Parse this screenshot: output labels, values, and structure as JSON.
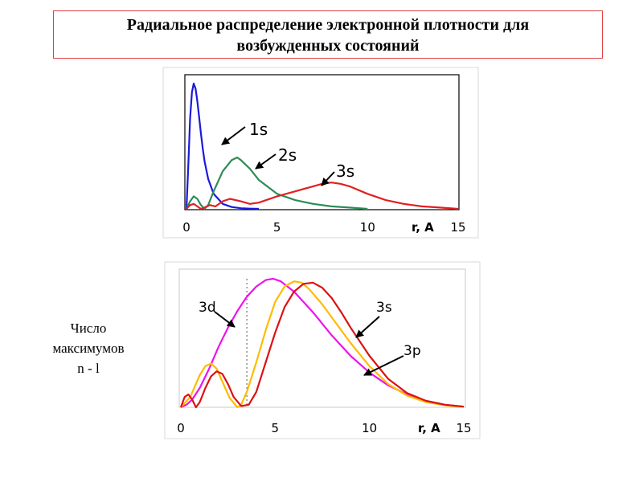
{
  "title_line1": "Радиальное распределение электронной плотности для",
  "title_line2": "возбужденных состояний",
  "side_note": [
    "Число",
    "максимумов",
    "n - l"
  ],
  "chart_data": [
    {
      "type": "line",
      "xlabel": "r, A",
      "xlim": [
        0,
        15
      ],
      "x_ticks": [
        "0",
        "5",
        "10",
        "15"
      ],
      "grid": false,
      "series": [
        {
          "name": "1s",
          "color": "#1a1adc",
          "x": [
            0,
            0.1,
            0.2,
            0.3,
            0.4,
            0.5,
            0.6,
            0.7,
            0.8,
            0.9,
            1.0,
            1.2,
            1.5,
            2.0,
            2.5,
            3.0,
            3.5,
            4.0
          ],
          "y": [
            0,
            0.35,
            0.72,
            0.93,
            1.0,
            0.96,
            0.86,
            0.73,
            0.6,
            0.48,
            0.38,
            0.24,
            0.12,
            0.04,
            0.015,
            0.005,
            0.002,
            0
          ]
        },
        {
          "name": "2s",
          "color": "#2e8b57",
          "x": [
            0,
            0.2,
            0.4,
            0.6,
            0.8,
            1.0,
            1.2,
            1.5,
            2.0,
            2.5,
            2.8,
            3.0,
            3.5,
            4.0,
            5.0,
            6.0,
            7.0,
            8.0,
            9.0,
            10.0
          ],
          "y": [
            0,
            0.06,
            0.1,
            0.08,
            0.03,
            0.0,
            0.03,
            0.14,
            0.3,
            0.39,
            0.41,
            0.39,
            0.32,
            0.23,
            0.12,
            0.07,
            0.04,
            0.02,
            0.01,
            0
          ]
        },
        {
          "name": "3s",
          "color": "#e02020",
          "x": [
            0,
            0.2,
            0.4,
            0.6,
            0.8,
            1.0,
            1.3,
            1.6,
            2.0,
            2.4,
            3.0,
            3.5,
            4.0,
            5.0,
            6.0,
            7.0,
            7.5,
            8.0,
            8.5,
            9.0,
            10.0,
            11.0,
            12.0,
            13.0,
            14.0,
            15.0
          ],
          "y": [
            0,
            0.03,
            0.04,
            0.02,
            0.0,
            0.01,
            0.03,
            0.02,
            0.06,
            0.08,
            0.06,
            0.04,
            0.05,
            0.1,
            0.14,
            0.18,
            0.2,
            0.21,
            0.2,
            0.18,
            0.12,
            0.07,
            0.04,
            0.02,
            0.01,
            0
          ]
        }
      ],
      "annotations": [
        "1s",
        "2s",
        "3s"
      ]
    },
    {
      "type": "line",
      "xlabel": "r, A",
      "xlim": [
        0,
        15
      ],
      "x_ticks": [
        "0",
        "5",
        "10",
        "15"
      ],
      "grid": false,
      "series": [
        {
          "name": "3d",
          "color": "#ee11ee",
          "x": [
            0,
            0.3,
            0.6,
            1.0,
            1.5,
            2.0,
            2.5,
            3.0,
            3.5,
            4.0,
            4.5,
            4.9,
            5.3,
            6.0,
            7.0,
            8.0,
            9.0,
            10.0,
            11.0,
            12.0,
            13.0,
            14.0,
            15.0
          ],
          "y": [
            0,
            0.02,
            0.06,
            0.15,
            0.3,
            0.47,
            0.62,
            0.75,
            0.86,
            0.94,
            0.99,
            1.0,
            0.98,
            0.9,
            0.74,
            0.56,
            0.4,
            0.27,
            0.17,
            0.1,
            0.05,
            0.02,
            0.005
          ]
        },
        {
          "name": "3p",
          "color": "#ffbb00",
          "x": [
            0,
            0.5,
            1.0,
            1.3,
            1.6,
            1.9,
            2.2,
            2.6,
            3.0,
            3.2,
            3.5,
            4.0,
            4.5,
            5.0,
            5.5,
            6.0,
            6.4,
            6.8,
            7.5,
            8.0,
            9.0,
            10.0,
            11.0,
            12.0,
            13.0,
            14.0,
            15.0
          ],
          "y": [
            0,
            0.08,
            0.25,
            0.32,
            0.34,
            0.3,
            0.2,
            0.07,
            0.0,
            0.02,
            0.12,
            0.35,
            0.6,
            0.82,
            0.94,
            0.98,
            0.97,
            0.92,
            0.8,
            0.7,
            0.5,
            0.32,
            0.18,
            0.09,
            0.04,
            0.015,
            0.003
          ]
        },
        {
          "name": "3s",
          "color": "#dd1111",
          "x": [
            0,
            0.2,
            0.4,
            0.6,
            0.8,
            1.0,
            1.3,
            1.6,
            1.9,
            2.2,
            2.5,
            2.8,
            3.2,
            3.6,
            4.0,
            4.5,
            5.0,
            5.5,
            6.0,
            6.5,
            7.0,
            7.5,
            8.0,
            8.5,
            9.0,
            10.0,
            11.0,
            12.0,
            13.0,
            14.0,
            15.0
          ],
          "y": [
            0,
            0.08,
            0.1,
            0.06,
            0.0,
            0.04,
            0.15,
            0.24,
            0.28,
            0.26,
            0.18,
            0.08,
            0.01,
            0.02,
            0.12,
            0.35,
            0.58,
            0.78,
            0.9,
            0.96,
            0.97,
            0.93,
            0.85,
            0.74,
            0.62,
            0.4,
            0.22,
            0.11,
            0.05,
            0.02,
            0.005
          ]
        }
      ],
      "reference_line_x": 3.5,
      "annotations": [
        "3d",
        "3s",
        "3p"
      ]
    }
  ]
}
